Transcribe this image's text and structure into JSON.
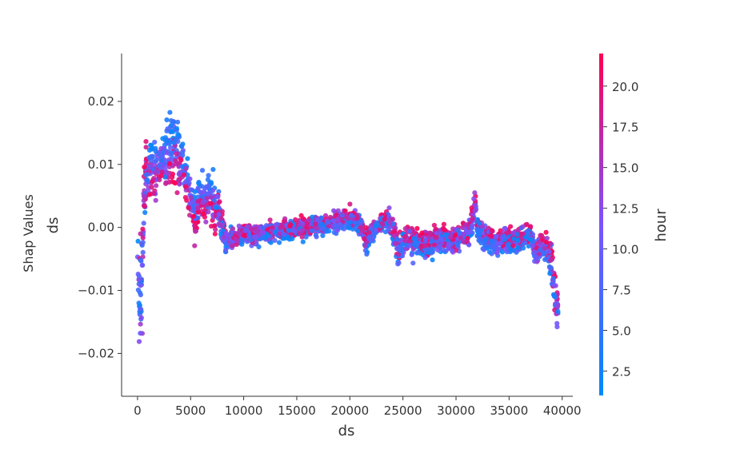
{
  "chart_data": {
    "type": "scatter",
    "title": "",
    "xlabel": "ds",
    "ylabel": "ds",
    "ylabel_outer": "Shap Values",
    "xlim": [
      -1500,
      41000
    ],
    "ylim": [
      -0.0268,
      0.0276
    ],
    "x_ticks": [
      0,
      5000,
      10000,
      15000,
      20000,
      25000,
      30000,
      35000,
      40000
    ],
    "x_tick_labels": [
      "0",
      "5000",
      "10000",
      "15000",
      "20000",
      "25000",
      "30000",
      "35000",
      "40000"
    ],
    "y_ticks": [
      -0.02,
      -0.01,
      0.0,
      0.01,
      0.02
    ],
    "y_tick_labels": [
      "−0.02",
      "−0.01",
      "0.00",
      "0.01",
      "0.02"
    ],
    "grid": false,
    "legend": "none",
    "colorbar": {
      "label": "hour",
      "range": [
        1,
        22
      ],
      "ticks": [
        2.5,
        5.0,
        7.5,
        10.0,
        12.5,
        15.0,
        17.5,
        20.0
      ],
      "tick_labels": [
        "2.5",
        "5.0",
        "7.5",
        "10.0",
        "12.5",
        "15.0",
        "17.5",
        "20.0"
      ],
      "colors": [
        "#008afb",
        "#7c52ff",
        "#ff0051"
      ]
    },
    "trend": {
      "x": [
        0,
        200,
        400,
        600,
        800,
        1000,
        1300,
        1700,
        2200,
        2700,
        3200,
        3700,
        4200,
        4700,
        5100,
        5400,
        5700,
        6200,
        6700,
        7200,
        7700,
        8000,
        8300,
        9000,
        10000,
        12000,
        14000,
        16000,
        18000,
        20000,
        21000,
        21500,
        22500,
        23300,
        23800,
        24300,
        24600,
        25000,
        26000,
        27000,
        28000,
        29000,
        30000,
        31000,
        31500,
        31800,
        32000,
        32500,
        33000,
        34000,
        35000,
        36000,
        37000,
        37500,
        38000,
        38500,
        39000,
        39300,
        39600
      ],
      "y": [
        -0.006,
        -0.012,
        -0.008,
        0.004,
        0.008,
        0.009,
        0.01,
        0.009,
        0.01,
        0.011,
        0.012,
        0.012,
        0.01,
        0.007,
        0.004,
        0.001,
        0.004,
        0.005,
        0.005,
        0.004,
        0.003,
        0.0,
        -0.002,
        -0.002,
        -0.001,
        -0.001,
        -0.0005,
        0.0,
        0.0005,
        0.0015,
        0.0005,
        -0.002,
        0.0,
        0.001,
        0.001,
        -0.0015,
        -0.004,
        -0.002,
        -0.002,
        -0.003,
        -0.002,
        -0.002,
        -0.002,
        -0.001,
        0.0005,
        0.004,
        0.0,
        -0.001,
        -0.002,
        -0.002,
        -0.002,
        -0.002,
        -0.001,
        -0.004,
        -0.003,
        -0.003,
        -0.006,
        -0.01,
        -0.014
      ],
      "spread": [
        0.008,
        0.008,
        0.007,
        0.006,
        0.005,
        0.004,
        0.004,
        0.004,
        0.004,
        0.004,
        0.005,
        0.005,
        0.004,
        0.003,
        0.003,
        0.003,
        0.003,
        0.003,
        0.003,
        0.003,
        0.003,
        0.002,
        0.002,
        0.0015,
        0.0015,
        0.0015,
        0.0015,
        0.0015,
        0.0015,
        0.0015,
        0.0015,
        0.002,
        0.0015,
        0.0015,
        0.002,
        0.002,
        0.002,
        0.002,
        0.002,
        0.002,
        0.002,
        0.002,
        0.002,
        0.002,
        0.002,
        0.002,
        0.002,
        0.002,
        0.002,
        0.002,
        0.002,
        0.002,
        0.002,
        0.002,
        0.002,
        0.002,
        0.003,
        0.003,
        0.003
      ]
    },
    "n_points": 2600
  }
}
